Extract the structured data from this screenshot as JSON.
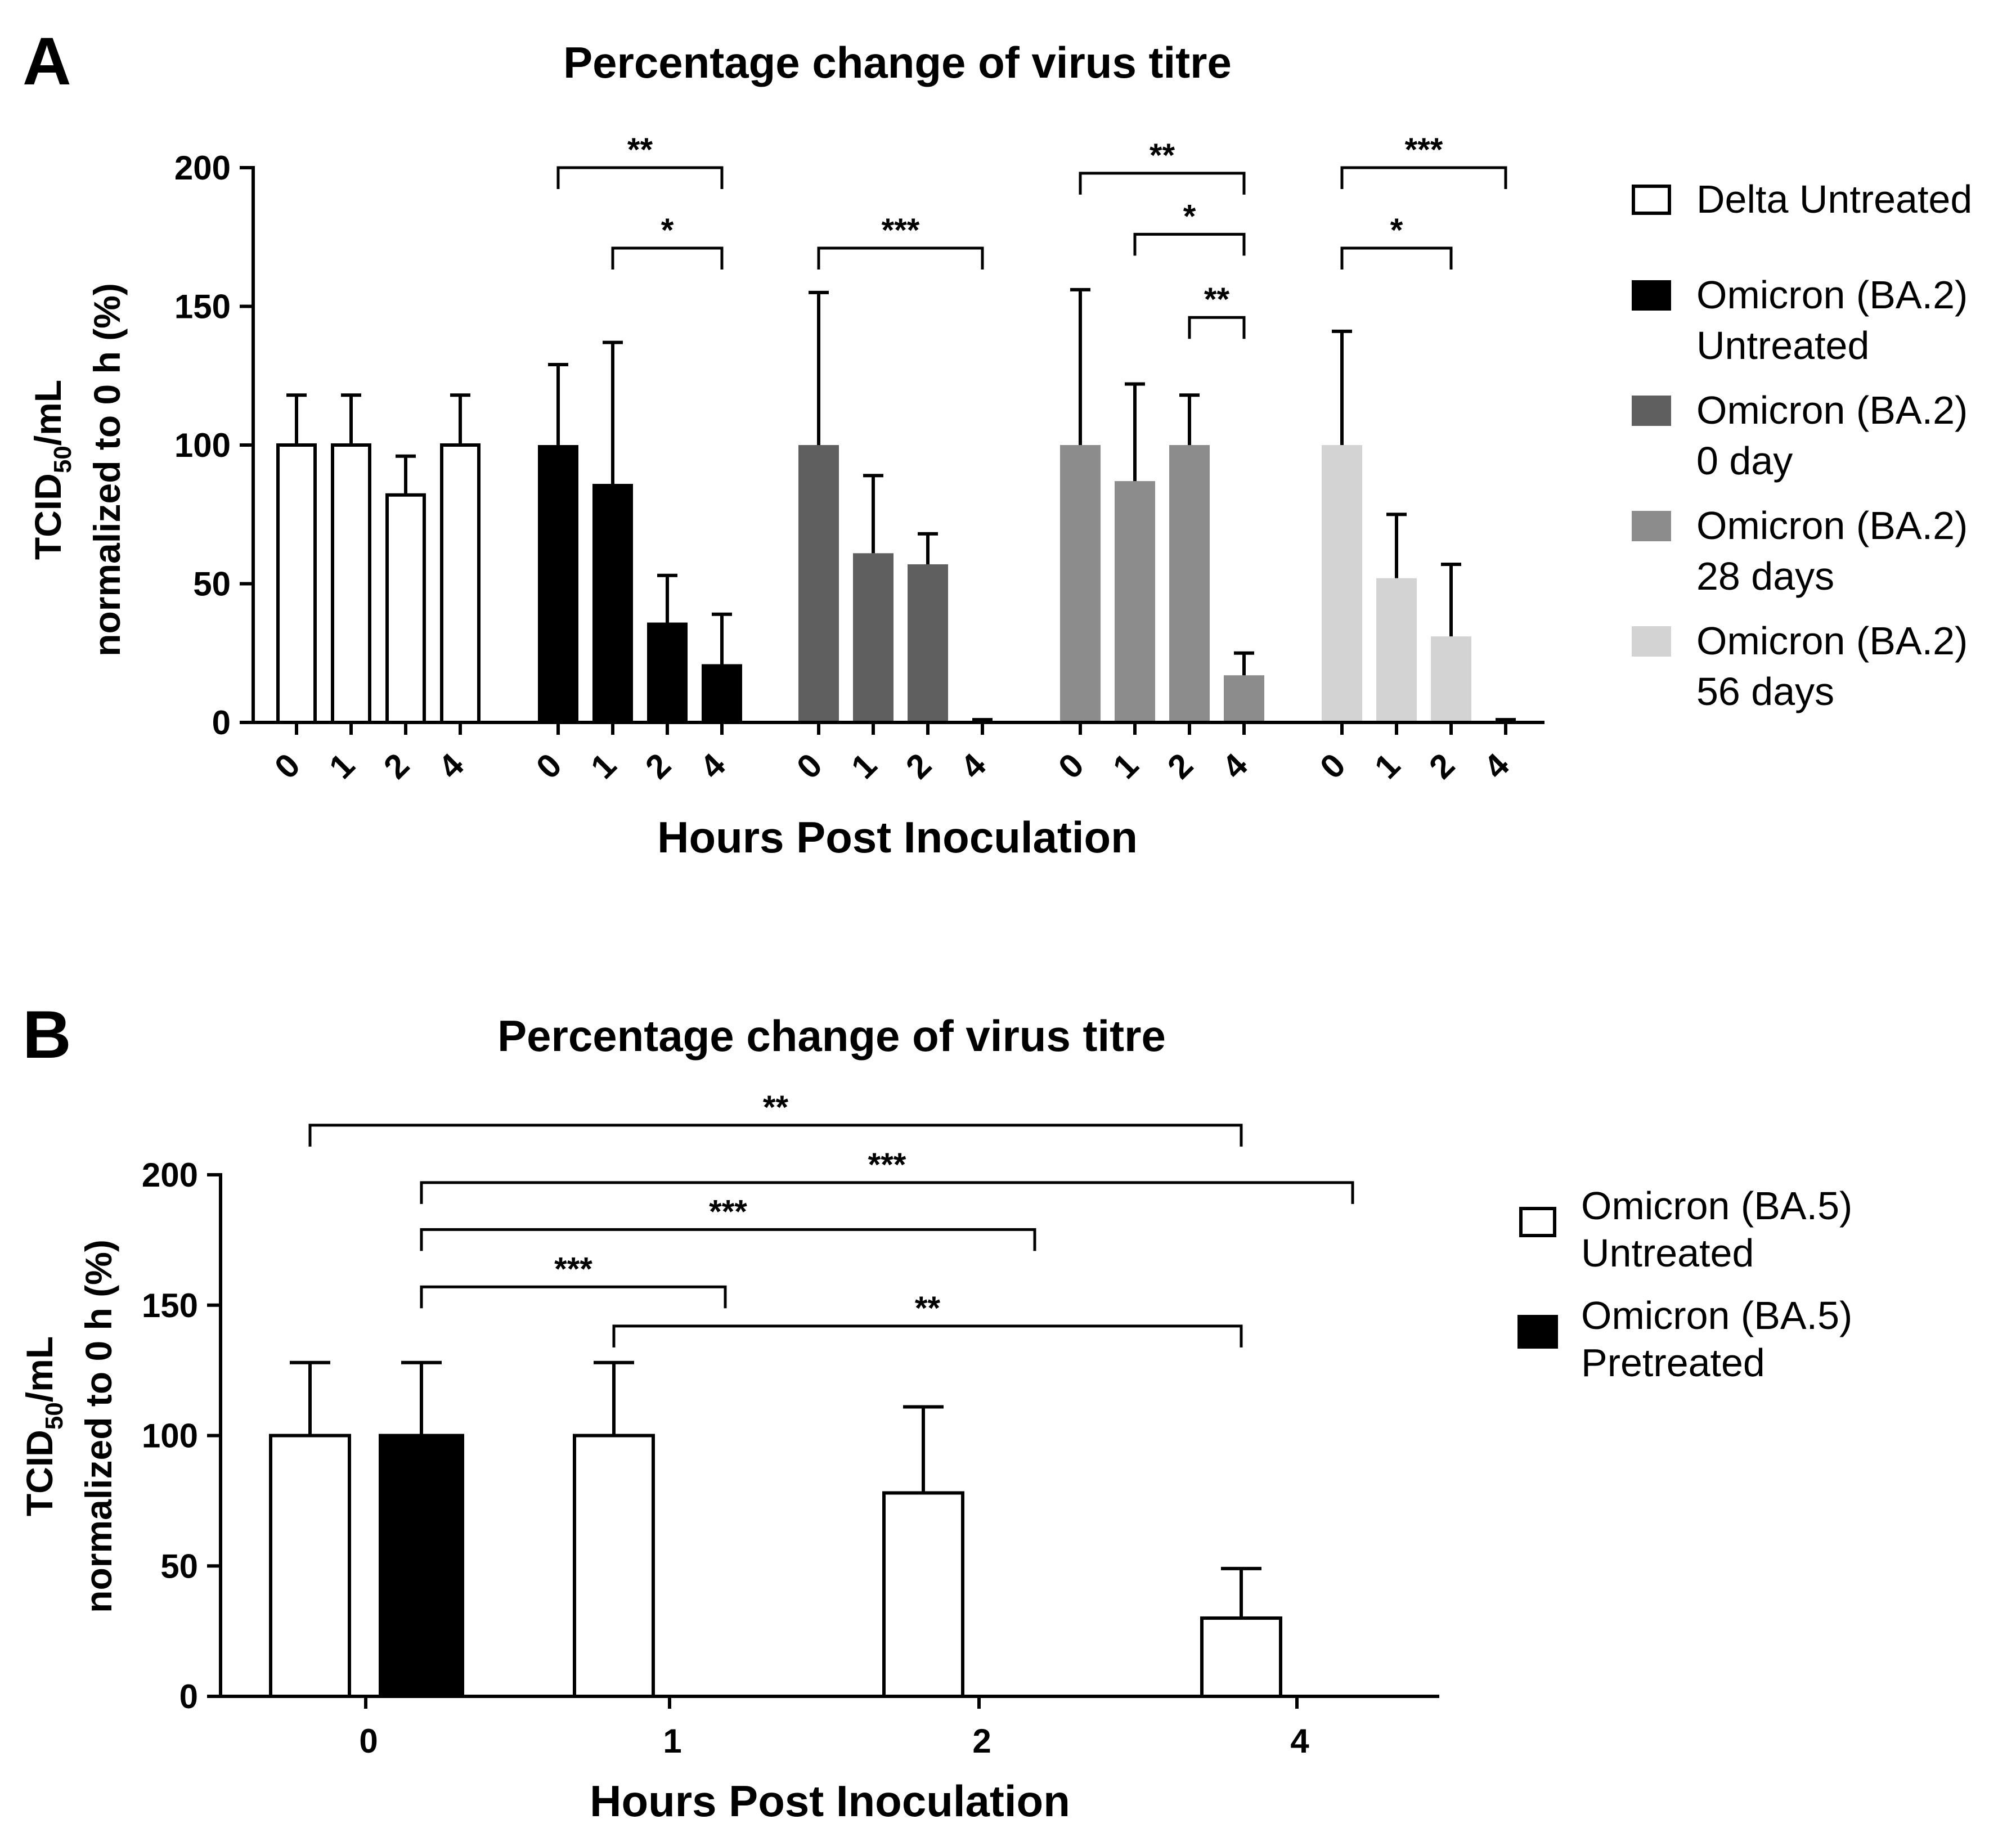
{
  "figure": {
    "panels": [
      "A",
      "B"
    ]
  },
  "chart_data": [
    {
      "panel": "A",
      "type": "bar",
      "title": "Percentage change of virus titre",
      "xlabel": "Hours Post Inoculation",
      "ylabel_line1_main": "TCID",
      "ylabel_line1_sub": "50",
      "ylabel_line1_end": "/mL",
      "ylabel_line2": "normalized to 0 h (%)",
      "ylim": [
        0,
        200
      ],
      "yticks": [
        0,
        50,
        100,
        150,
        200
      ],
      "legend_position": "right",
      "groups": [
        {
          "name": "Delta Untreated",
          "legend": [
            "Delta Untreated"
          ],
          "color": "#ffffff",
          "outline": "#000000",
          "categories": [
            "0",
            "1",
            "2",
            "4"
          ],
          "values": [
            100,
            100,
            82,
            100
          ],
          "errors": [
            18,
            18,
            14,
            18
          ]
        },
        {
          "name": "Omicron (BA.2) Untreated",
          "legend": [
            "Omicron (BA.2)",
            "Untreated"
          ],
          "color": "#000000",
          "outline": "#000000",
          "categories": [
            "0",
            "1",
            "2",
            "4"
          ],
          "values": [
            100,
            86,
            36,
            21
          ],
          "errors": [
            29,
            51,
            17,
            18
          ]
        },
        {
          "name": "Omicron (BA.2) 0 day",
          "legend": [
            "Omicron (BA.2)",
            "0 day"
          ],
          "color": "#5f5f5f",
          "outline": "#5f5f5f",
          "categories": [
            "0",
            "1",
            "2",
            "4"
          ],
          "values": [
            100,
            61,
            57,
            0
          ],
          "errors": [
            55,
            28,
            11,
            1
          ]
        },
        {
          "name": "Omicron (BA.2) 28 days",
          "legend": [
            "Omicron (BA.2)",
            "28 days"
          ],
          "color": "#8c8c8c",
          "outline": "#8c8c8c",
          "categories": [
            "0",
            "1",
            "2",
            "4"
          ],
          "values": [
            100,
            87,
            100,
            17
          ],
          "errors": [
            56,
            35,
            18,
            8
          ]
        },
        {
          "name": "Omicron (BA.2) 56 days",
          "legend": [
            "Omicron (BA.2)",
            "56 days"
          ],
          "color": "#d3d3d3",
          "outline": "#d3d3d3",
          "categories": [
            "0",
            "1",
            "2",
            "4"
          ],
          "values": [
            100,
            52,
            31,
            0
          ],
          "errors": [
            41,
            23,
            26,
            1
          ]
        }
      ],
      "significance": [
        {
          "group": 1,
          "from": 0,
          "to": 3,
          "label": "**",
          "level": 200
        },
        {
          "group": 1,
          "from": 1,
          "to": 3,
          "label": "*",
          "level": 171
        },
        {
          "group": 2,
          "from": 0,
          "to": 3,
          "label": "***",
          "level": 171
        },
        {
          "group": 3,
          "from": 0,
          "to": 3,
          "label": "**",
          "level": 198
        },
        {
          "group": 3,
          "from": 1,
          "to": 3,
          "label": "*",
          "level": 176
        },
        {
          "group": 3,
          "from": 2,
          "to": 3,
          "label": "**",
          "level": 146
        },
        {
          "group": 4,
          "from": 0,
          "to": 3,
          "label": "***",
          "level": 200
        },
        {
          "group": 4,
          "from": 0,
          "to": 2,
          "label": "*",
          "level": 171
        }
      ]
    },
    {
      "panel": "B",
      "type": "bar",
      "title": "Percentage change of virus titre",
      "xlabel": "Hours Post Inoculation",
      "ylabel_line1_main": "TCID",
      "ylabel_line1_sub": "50",
      "ylabel_line1_end": "/mL",
      "ylabel_line2": "normalized to 0 h (%)",
      "ylim": [
        0,
        200
      ],
      "yticks": [
        0,
        50,
        100,
        150,
        200
      ],
      "legend_position": "right",
      "categories": [
        "0",
        "1",
        "2",
        "4"
      ],
      "series": [
        {
          "name": "Omicron (BA.5) Untreated",
          "legend": [
            "Omicron (BA.5)",
            "Untreated"
          ],
          "color": "#ffffff",
          "outline": "#000000",
          "values": [
            100,
            100,
            78,
            30
          ],
          "errors": [
            28,
            28,
            33,
            19
          ]
        },
        {
          "name": "Omicron (BA.5) Pretreated",
          "legend": [
            "Omicron (BA.5)",
            "Pretreated"
          ],
          "color": "#000000",
          "outline": "#000000",
          "values": [
            100,
            0,
            0,
            0
          ],
          "errors": [
            28,
            0,
            0,
            0
          ]
        }
      ],
      "significance": [
        {
          "from": "0:0",
          "to": "4:0",
          "label": "**",
          "level": 219
        },
        {
          "from": "0:1",
          "to": "4:1",
          "label": "***",
          "level": 197
        },
        {
          "from": "0:1",
          "to": "2:1",
          "label": "***",
          "level": 179
        },
        {
          "from": "0:1",
          "to": "1:1",
          "label": "***",
          "level": 157
        },
        {
          "from": "1:0",
          "to": "4:0",
          "label": "**",
          "level": 142
        }
      ]
    }
  ]
}
